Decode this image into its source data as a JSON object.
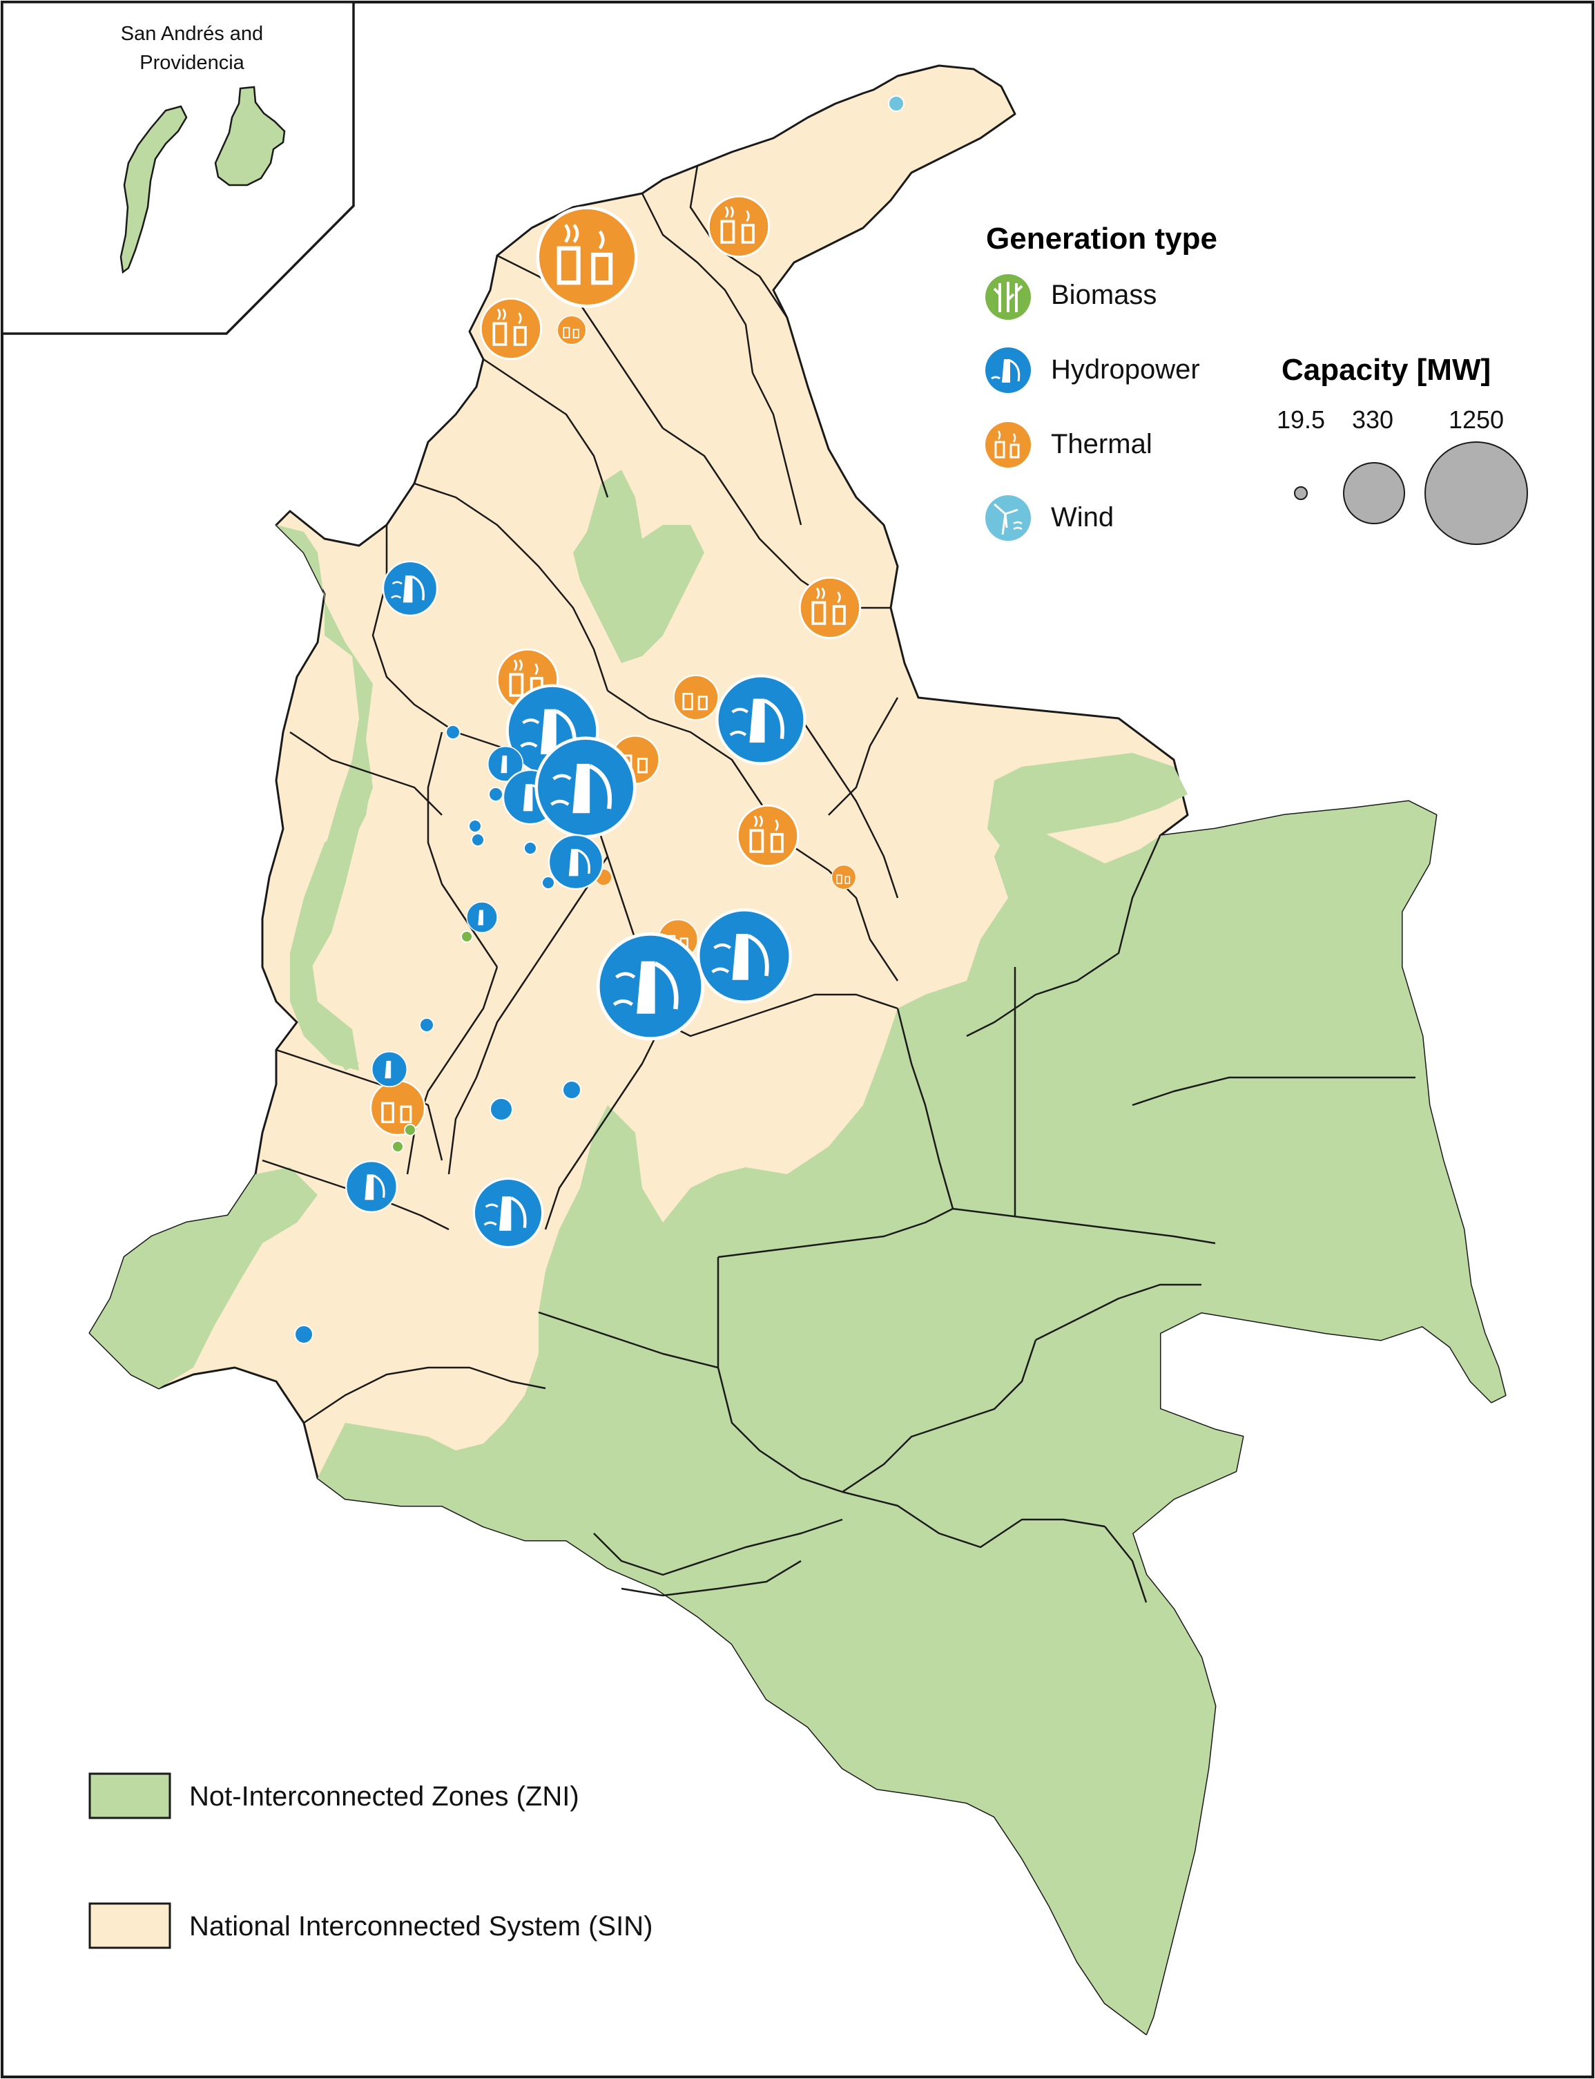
{
  "inset": {
    "title_line1": "San Andrés and",
    "title_line2": "Providencia"
  },
  "legend": {
    "title": "Generation type",
    "items": [
      {
        "label": "Biomass",
        "icon": "biomass-icon",
        "color": "#7ab648"
      },
      {
        "label": "Hydropower",
        "icon": "hydropower-icon",
        "color": "#1a8ad4"
      },
      {
        "label": "Thermal",
        "icon": "thermal-icon",
        "color": "#f0962e"
      },
      {
        "label": "Wind",
        "icon": "wind-icon",
        "color": "#6fc3dc"
      }
    ]
  },
  "capacity": {
    "title": "Capacity [MW]",
    "labels": [
      "19.5",
      "330",
      "1250"
    ],
    "values_mw": [
      19.5,
      330,
      1250
    ],
    "color": "#b0b0b0"
  },
  "zones": [
    {
      "label": "Not-Interconnected Zones (ZNI)",
      "color": "#bcdaa1"
    },
    {
      "label": "National Interconnected System (SIN)",
      "color": "#fdebcd"
    }
  ],
  "colors": {
    "border": "#1a1a1a",
    "zni": "#bcdaa1",
    "sin": "#fdebcd"
  }
}
